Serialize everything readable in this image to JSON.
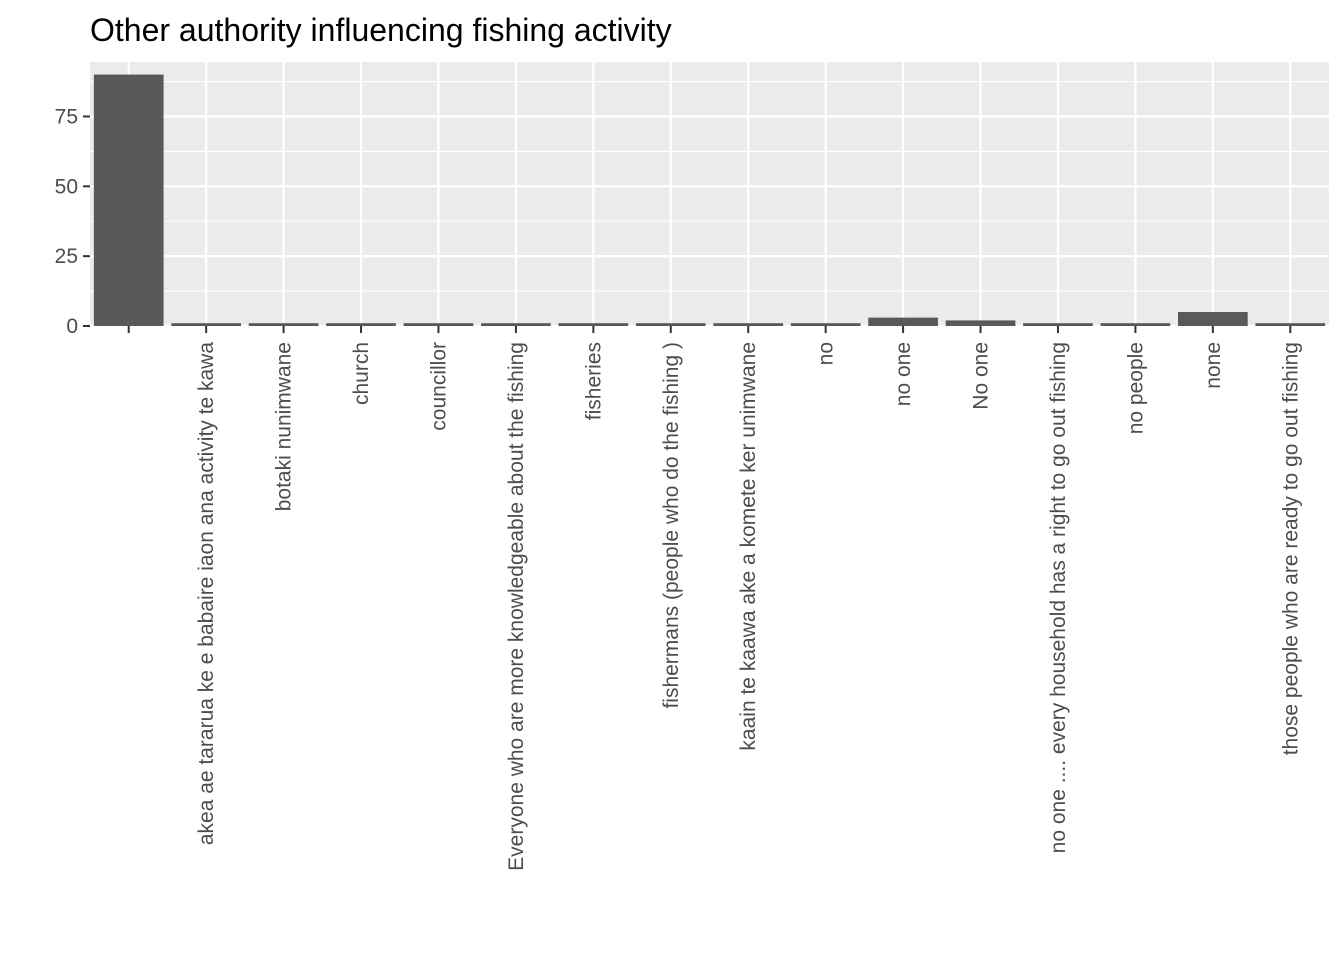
{
  "chart_data": {
    "type": "bar",
    "title": "Other authority influencing fishing activity",
    "xlabel": "",
    "ylabel": "",
    "categories": [
      "",
      "akea ae tararua ke e babaire iaon ana activity te kawa",
      "botaki nunimwane",
      "church",
      "councillor",
      "Everyone who are more knowledgeable about the  fishing",
      "fisheries",
      "fishermans (people who do the fishing )",
      "kaain te kaawa ake a komete ker unimwane",
      "no",
      "no one",
      "No one",
      "no one .... every household has a right to go out fishing",
      "no people",
      "none",
      "those people who are ready to go out fishing"
    ],
    "values": [
      90,
      1,
      1,
      1,
      1,
      1,
      1,
      1,
      1,
      1,
      3,
      2,
      1,
      1,
      5,
      1
    ],
    "ylim": [
      0,
      94.5
    ],
    "yticks": [
      0,
      25,
      50,
      75
    ],
    "grid": true,
    "legend": "none",
    "colors": {
      "panel": "#ebebeb",
      "grid": "#ffffff",
      "bar": "#595959",
      "text": "#4d4d4d",
      "tick": "#333333"
    }
  }
}
